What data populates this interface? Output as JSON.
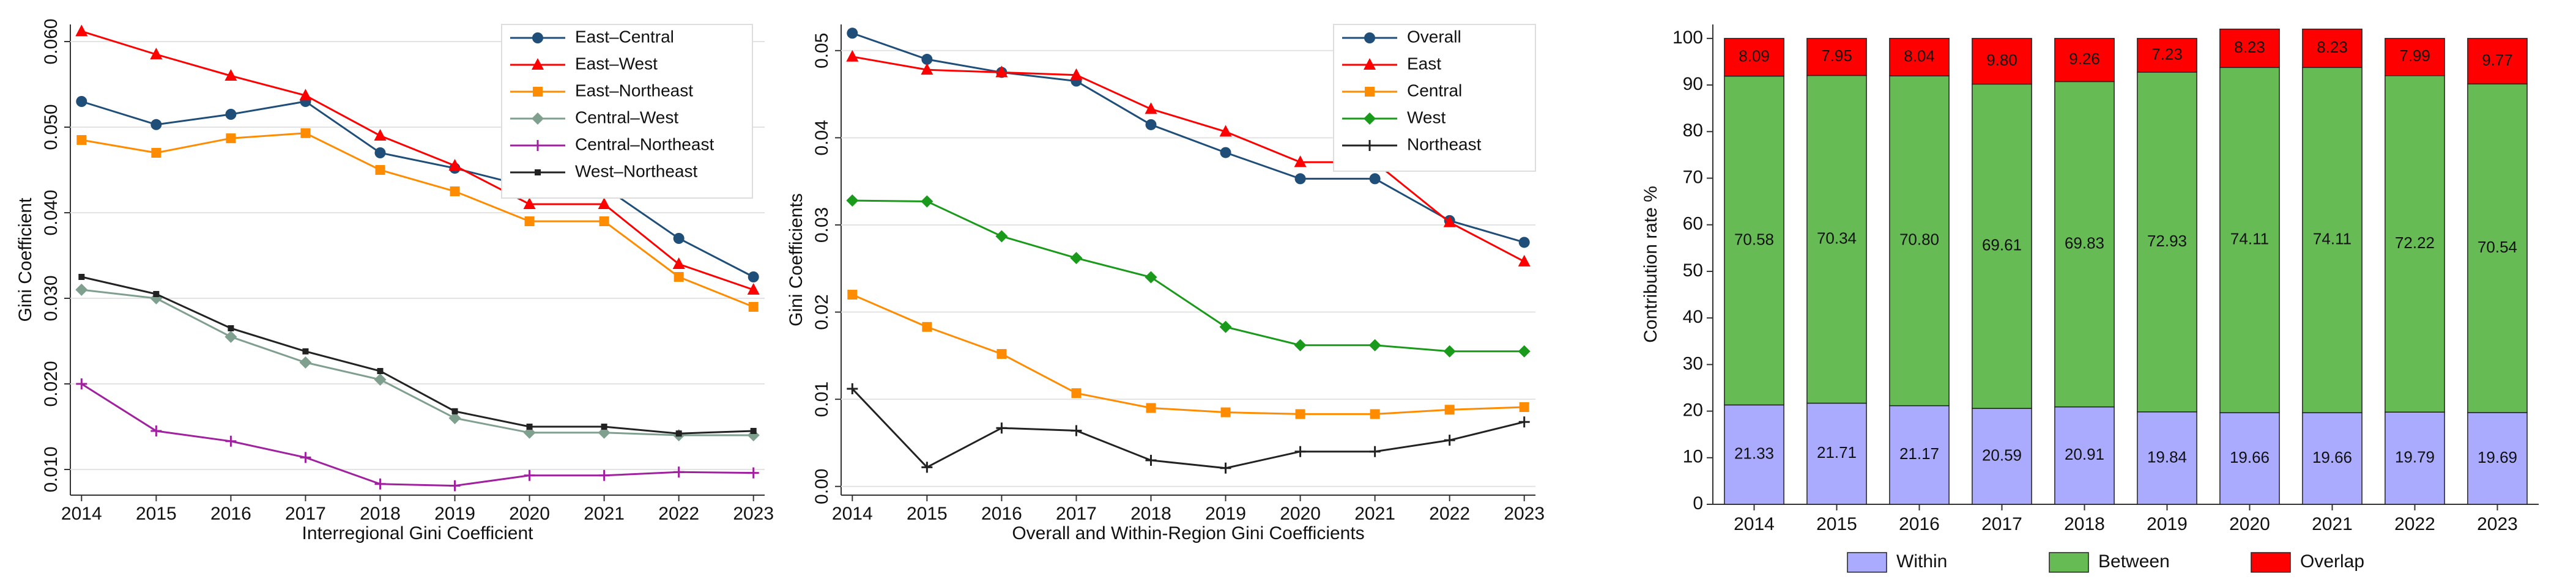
{
  "chart_data": [
    {
      "type": "line",
      "x_label": "Interregional Gini Coefficient",
      "y_label": "Gini Coefficient",
      "x": [
        2014,
        2015,
        2016,
        2017,
        2018,
        2019,
        2020,
        2021,
        2022,
        2023
      ],
      "xlim": [
        2013.85,
        2023.15
      ],
      "xticks": [
        2014,
        2015,
        2016,
        2017,
        2018,
        2019,
        2020,
        2021,
        2022,
        2023
      ],
      "ylim": [
        0.007,
        0.062
      ],
      "yticks": [
        {
          "value": 0.01,
          "label": "0.010"
        },
        {
          "value": 0.02,
          "label": "0.020"
        },
        {
          "value": 0.03,
          "label": "0.030"
        },
        {
          "value": 0.04,
          "label": "0.040"
        },
        {
          "value": 0.05,
          "label": "0.050"
        },
        {
          "value": 0.06,
          "label": "0.060"
        }
      ],
      "grid": true,
      "legend": "top-right",
      "series": [
        {
          "name": "East–Central",
          "color": "#1f4e79",
          "marker": "circle",
          "values": [
            0.053,
            0.0503,
            0.0515,
            0.053,
            0.047,
            0.0452,
            0.043,
            0.043,
            0.037,
            0.0325
          ]
        },
        {
          "name": "East–West",
          "color": "#ff0000",
          "marker": "triangle",
          "values": [
            0.0612,
            0.0585,
            0.056,
            0.0537,
            0.049,
            0.0455,
            0.041,
            0.041,
            0.034,
            0.031
          ]
        },
        {
          "name": "East–Northeast",
          "color": "#ff8c00",
          "marker": "square",
          "values": [
            0.0485,
            0.047,
            0.0487,
            0.0493,
            0.045,
            0.0425,
            0.039,
            0.039,
            0.0325,
            0.029
          ]
        },
        {
          "name": "Central–West",
          "color": "#7f9f8f",
          "marker": "diamond",
          "values": [
            0.031,
            0.03,
            0.0255,
            0.0225,
            0.0205,
            0.016,
            0.0143,
            0.0143,
            0.014,
            0.014
          ]
        },
        {
          "name": "Central–Northeast",
          "color": "#a020a0",
          "marker": "plus",
          "values": [
            0.02,
            0.0145,
            0.0133,
            0.0114,
            0.0083,
            0.0081,
            0.0093,
            0.0093,
            0.0097,
            0.0096
          ]
        },
        {
          "name": "West–Northeast",
          "color": "#222222",
          "marker": "small-square",
          "values": [
            0.0325,
            0.0305,
            0.0265,
            0.0238,
            0.0215,
            0.0168,
            0.015,
            0.015,
            0.0142,
            0.0145
          ]
        }
      ]
    },
    {
      "type": "line",
      "x_label": "Overall and Within-Region Gini Coefficients",
      "y_label": "Gini Coefficients",
      "x": [
        2014,
        2015,
        2016,
        2017,
        2018,
        2019,
        2020,
        2021,
        2022,
        2023
      ],
      "xlim": [
        2013.85,
        2023.15
      ],
      "xticks": [
        2014,
        2015,
        2016,
        2017,
        2018,
        2019,
        2020,
        2021,
        2022,
        2023
      ],
      "ylim": [
        -0.001,
        0.053
      ],
      "yticks": [
        {
          "value": 0,
          "label": "0.00"
        },
        {
          "value": 0.01,
          "label": "0.01"
        },
        {
          "value": 0.02,
          "label": "0.02"
        },
        {
          "value": 0.03,
          "label": "0.03"
        },
        {
          "value": 0.04,
          "label": "0.04"
        },
        {
          "value": 0.05,
          "label": "0.05"
        }
      ],
      "grid": true,
      "legend": "top-right",
      "series": [
        {
          "name": "Overall",
          "color": "#1f4e79",
          "marker": "circle",
          "values": [
            0.052,
            0.049,
            0.0475,
            0.0465,
            0.0415,
            0.0383,
            0.0353,
            0.0353,
            0.0305,
            0.028
          ]
        },
        {
          "name": "East",
          "color": "#ff0000",
          "marker": "triangle",
          "values": [
            0.0493,
            0.0478,
            0.0475,
            0.0472,
            0.0433,
            0.0407,
            0.0372,
            0.0372,
            0.0303,
            0.0258
          ]
        },
        {
          "name": "Central",
          "color": "#ff8c00",
          "marker": "square",
          "values": [
            0.022,
            0.0183,
            0.0152,
            0.0107,
            0.009,
            0.0085,
            0.0083,
            0.0083,
            0.0088,
            0.0091
          ]
        },
        {
          "name": "West",
          "color": "#1a9a1a",
          "marker": "diamond",
          "values": [
            0.0328,
            0.0327,
            0.0287,
            0.0262,
            0.024,
            0.0183,
            0.0162,
            0.0162,
            0.0155,
            0.0155
          ]
        },
        {
          "name": "Northeast",
          "color": "#222222",
          "marker": "plus",
          "values": [
            0.0112,
            0.0022,
            0.0067,
            0.0064,
            0.003,
            0.0021,
            0.004,
            0.004,
            0.0053,
            0.0074
          ]
        }
      ]
    },
    {
      "type": "stacked-bar",
      "y_label": "Contribution rate %",
      "categories": [
        "2014",
        "2015",
        "2016",
        "2017",
        "2018",
        "2019",
        "2020",
        "2021",
        "2022",
        "2023"
      ],
      "ylim": [
        0,
        103
      ],
      "yticks": [
        0,
        10,
        20,
        30,
        40,
        50,
        60,
        70,
        80,
        90,
        100
      ],
      "grid": false,
      "legend": "bottom",
      "series": [
        {
          "name": "Within",
          "color": "#aaaaff",
          "values": [
            21.33,
            21.71,
            21.17,
            20.59,
            20.91,
            19.84,
            19.66,
            19.66,
            19.79,
            19.69
          ],
          "value_labels": [
            "21.33",
            "21.71",
            "21.17",
            "20.59",
            "20.91",
            "19.84",
            "19.66",
            "19.66",
            "19.79",
            "19.69"
          ]
        },
        {
          "name": "Between",
          "color": "#66bb55",
          "values": [
            70.58,
            70.34,
            70.8,
            69.61,
            69.83,
            72.93,
            74.11,
            74.11,
            72.22,
            70.54
          ],
          "value_labels": [
            "70.58",
            "70.34",
            "70.80",
            "69.61",
            "69.83",
            "72.93",
            "74.11",
            "74.11",
            "72.22",
            "70.54"
          ]
        },
        {
          "name": "Overlap",
          "color": "#ff0000",
          "values": [
            8.09,
            7.95,
            8.04,
            9.8,
            9.26,
            7.23,
            8.23,
            8.23,
            7.99,
            9.77
          ],
          "value_labels": [
            "8.09",
            "7.95",
            "8.04",
            "9.80",
            "9.26",
            "7.23",
            "8.23",
            "8.23",
            "7.99",
            "9.77"
          ]
        }
      ]
    }
  ]
}
